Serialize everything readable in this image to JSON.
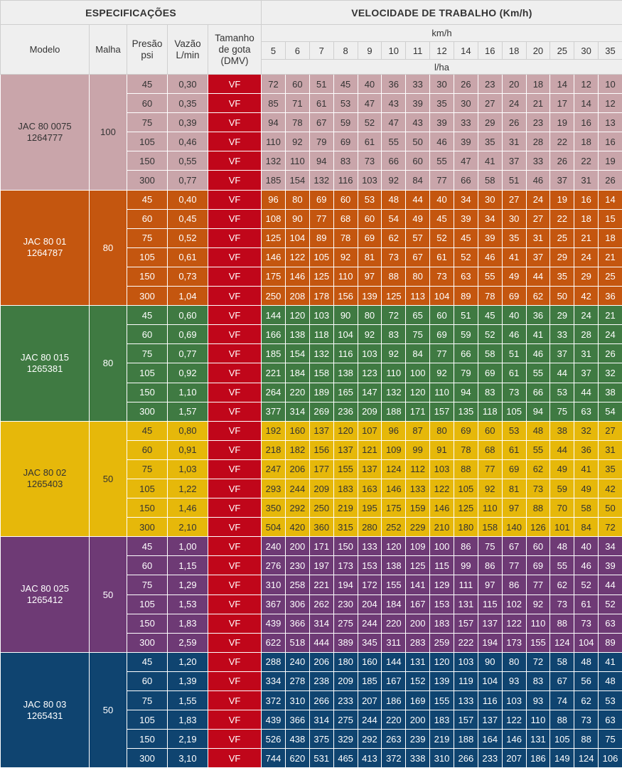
{
  "header": {
    "specs_title": "ESPECIFICAÇÕES",
    "speed_title": "VELOCIDADE DE TRABALHO (Km/h)",
    "col_modelo": "Modelo",
    "col_malha": "Malha",
    "col_presao": "Presão psi",
    "col_vazao": "Vazão L/min",
    "col_gota": "Tamanho de gota (DMV)",
    "speed_unit": "km/h",
    "rate_unit": "l/ha",
    "speeds": [
      "5",
      "6",
      "7",
      "8",
      "9",
      "10",
      "11",
      "12",
      "14",
      "16",
      "18",
      "20",
      "25",
      "30",
      "35"
    ]
  },
  "colors": {
    "vf": "#c0061a"
  },
  "groups": [
    {
      "model": "JAC 80 0075",
      "code": "1264777",
      "malha": "100",
      "bg": "#c9a5aa",
      "fg": "#333333",
      "rows": [
        {
          "psi": "45",
          "flow": "0,30",
          "drop": "VF",
          "values": [
            "72",
            "60",
            "51",
            "45",
            "40",
            "36",
            "33",
            "30",
            "26",
            "23",
            "20",
            "18",
            "14",
            "12",
            "10"
          ]
        },
        {
          "psi": "60",
          "flow": "0,35",
          "drop": "VF",
          "values": [
            "85",
            "71",
            "61",
            "53",
            "47",
            "43",
            "39",
            "35",
            "30",
            "27",
            "24",
            "21",
            "17",
            "14",
            "12"
          ]
        },
        {
          "psi": "75",
          "flow": "0,39",
          "drop": "VF",
          "values": [
            "94",
            "78",
            "67",
            "59",
            "52",
            "47",
            "43",
            "39",
            "33",
            "29",
            "26",
            "23",
            "19",
            "16",
            "13"
          ]
        },
        {
          "psi": "105",
          "flow": "0,46",
          "drop": "VF",
          "values": [
            "110",
            "92",
            "79",
            "69",
            "61",
            "55",
            "50",
            "46",
            "39",
            "35",
            "31",
            "28",
            "22",
            "18",
            "16"
          ]
        },
        {
          "psi": "150",
          "flow": "0,55",
          "drop": "VF",
          "values": [
            "132",
            "110",
            "94",
            "83",
            "73",
            "66",
            "60",
            "55",
            "47",
            "41",
            "37",
            "33",
            "26",
            "22",
            "19"
          ]
        },
        {
          "psi": "300",
          "flow": "0,77",
          "drop": "VF",
          "values": [
            "185",
            "154",
            "132",
            "116",
            "103",
            "92",
            "84",
            "77",
            "66",
            "58",
            "51",
            "46",
            "37",
            "31",
            "26"
          ]
        }
      ]
    },
    {
      "model": "JAC 80 01",
      "code": "1264787",
      "malha": "80",
      "bg": "#c4560f",
      "fg": "#ffffff",
      "rows": [
        {
          "psi": "45",
          "flow": "0,40",
          "drop": "VF",
          "values": [
            "96",
            "80",
            "69",
            "60",
            "53",
            "48",
            "44",
            "40",
            "34",
            "30",
            "27",
            "24",
            "19",
            "16",
            "14"
          ]
        },
        {
          "psi": "60",
          "flow": "0,45",
          "drop": "VF",
          "values": [
            "108",
            "90",
            "77",
            "68",
            "60",
            "54",
            "49",
            "45",
            "39",
            "34",
            "30",
            "27",
            "22",
            "18",
            "15"
          ]
        },
        {
          "psi": "75",
          "flow": "0,52",
          "drop": "VF",
          "values": [
            "125",
            "104",
            "89",
            "78",
            "69",
            "62",
            "57",
            "52",
            "45",
            "39",
            "35",
            "31",
            "25",
            "21",
            "18"
          ]
        },
        {
          "psi": "105",
          "flow": "0,61",
          "drop": "VF",
          "values": [
            "146",
            "122",
            "105",
            "92",
            "81",
            "73",
            "67",
            "61",
            "52",
            "46",
            "41",
            "37",
            "29",
            "24",
            "21"
          ]
        },
        {
          "psi": "150",
          "flow": "0,73",
          "drop": "VF",
          "values": [
            "175",
            "146",
            "125",
            "110",
            "97",
            "88",
            "80",
            "73",
            "63",
            "55",
            "49",
            "44",
            "35",
            "29",
            "25"
          ]
        },
        {
          "psi": "300",
          "flow": "1,04",
          "drop": "VF",
          "values": [
            "250",
            "208",
            "178",
            "156",
            "139",
            "125",
            "113",
            "104",
            "89",
            "78",
            "69",
            "62",
            "50",
            "42",
            "36"
          ]
        }
      ]
    },
    {
      "model": "JAC 80 015",
      "code": "1265381",
      "malha": "80",
      "bg": "#3f7a42",
      "fg": "#ffffff",
      "rows": [
        {
          "psi": "45",
          "flow": "0,60",
          "drop": "VF",
          "values": [
            "144",
            "120",
            "103",
            "90",
            "80",
            "72",
            "65",
            "60",
            "51",
            "45",
            "40",
            "36",
            "29",
            "24",
            "21"
          ]
        },
        {
          "psi": "60",
          "flow": "0,69",
          "drop": "VF",
          "values": [
            "166",
            "138",
            "118",
            "104",
            "92",
            "83",
            "75",
            "69",
            "59",
            "52",
            "46",
            "41",
            "33",
            "28",
            "24"
          ]
        },
        {
          "psi": "75",
          "flow": "0,77",
          "drop": "VF",
          "values": [
            "185",
            "154",
            "132",
            "116",
            "103",
            "92",
            "84",
            "77",
            "66",
            "58",
            "51",
            "46",
            "37",
            "31",
            "26"
          ]
        },
        {
          "psi": "105",
          "flow": "0,92",
          "drop": "VF",
          "values": [
            "221",
            "184",
            "158",
            "138",
            "123",
            "110",
            "100",
            "92",
            "79",
            "69",
            "61",
            "55",
            "44",
            "37",
            "32"
          ]
        },
        {
          "psi": "150",
          "flow": "1,10",
          "drop": "VF",
          "values": [
            "264",
            "220",
            "189",
            "165",
            "147",
            "132",
            "120",
            "110",
            "94",
            "83",
            "73",
            "66",
            "53",
            "44",
            "38"
          ]
        },
        {
          "psi": "300",
          "flow": "1,57",
          "drop": "VF",
          "values": [
            "377",
            "314",
            "269",
            "236",
            "209",
            "188",
            "171",
            "157",
            "135",
            "118",
            "105",
            "94",
            "75",
            "63",
            "54"
          ]
        }
      ]
    },
    {
      "model": "JAC 80 02",
      "code": "1265403",
      "malha": "50",
      "bg": "#e6b80a",
      "fg": "#333333",
      "rows": [
        {
          "psi": "45",
          "flow": "0,80",
          "drop": "VF",
          "values": [
            "192",
            "160",
            "137",
            "120",
            "107",
            "96",
            "87",
            "80",
            "69",
            "60",
            "53",
            "48",
            "38",
            "32",
            "27"
          ]
        },
        {
          "psi": "60",
          "flow": "0,91",
          "drop": "VF",
          "values": [
            "218",
            "182",
            "156",
            "137",
            "121",
            "109",
            "99",
            "91",
            "78",
            "68",
            "61",
            "55",
            "44",
            "36",
            "31"
          ]
        },
        {
          "psi": "75",
          "flow": "1,03",
          "drop": "VF",
          "values": [
            "247",
            "206",
            "177",
            "155",
            "137",
            "124",
            "112",
            "103",
            "88",
            "77",
            "69",
            "62",
            "49",
            "41",
            "35"
          ]
        },
        {
          "psi": "105",
          "flow": "1,22",
          "drop": "VF",
          "values": [
            "293",
            "244",
            "209",
            "183",
            "163",
            "146",
            "133",
            "122",
            "105",
            "92",
            "81",
            "73",
            "59",
            "49",
            "42"
          ]
        },
        {
          "psi": "150",
          "flow": "1,46",
          "drop": "VF",
          "values": [
            "350",
            "292",
            "250",
            "219",
            "195",
            "175",
            "159",
            "146",
            "125",
            "110",
            "97",
            "88",
            "70",
            "58",
            "50"
          ]
        },
        {
          "psi": "300",
          "flow": "2,10",
          "drop": "VF",
          "values": [
            "504",
            "420",
            "360",
            "315",
            "280",
            "252",
            "229",
            "210",
            "180",
            "158",
            "140",
            "126",
            "101",
            "84",
            "72"
          ]
        }
      ]
    },
    {
      "model": "JAC 80 025",
      "code": "1265412",
      "malha": "50",
      "bg": "#6e3a75",
      "fg": "#ffffff",
      "rows": [
        {
          "psi": "45",
          "flow": "1,00",
          "drop": "VF",
          "values": [
            "240",
            "200",
            "171",
            "150",
            "133",
            "120",
            "109",
            "100",
            "86",
            "75",
            "67",
            "60",
            "48",
            "40",
            "34"
          ]
        },
        {
          "psi": "60",
          "flow": "1,15",
          "drop": "VF",
          "values": [
            "276",
            "230",
            "197",
            "173",
            "153",
            "138",
            "125",
            "115",
            "99",
            "86",
            "77",
            "69",
            "55",
            "46",
            "39"
          ]
        },
        {
          "psi": "75",
          "flow": "1,29",
          "drop": "VF",
          "values": [
            "310",
            "258",
            "221",
            "194",
            "172",
            "155",
            "141",
            "129",
            "111",
            "97",
            "86",
            "77",
            "62",
            "52",
            "44"
          ]
        },
        {
          "psi": "105",
          "flow": "1,53",
          "drop": "VF",
          "values": [
            "367",
            "306",
            "262",
            "230",
            "204",
            "184",
            "167",
            "153",
            "131",
            "115",
            "102",
            "92",
            "73",
            "61",
            "52"
          ]
        },
        {
          "psi": "150",
          "flow": "1,83",
          "drop": "VF",
          "values": [
            "439",
            "366",
            "314",
            "275",
            "244",
            "220",
            "200",
            "183",
            "157",
            "137",
            "122",
            "110",
            "88",
            "73",
            "63"
          ]
        },
        {
          "psi": "300",
          "flow": "2,59",
          "drop": "VF",
          "values": [
            "622",
            "518",
            "444",
            "389",
            "345",
            "311",
            "283",
            "259",
            "222",
            "194",
            "173",
            "155",
            "124",
            "104",
            "89"
          ]
        }
      ]
    },
    {
      "model": "JAC 80 03",
      "code": "1265431",
      "malha": "50",
      "bg": "#0f4470",
      "fg": "#ffffff",
      "rows": [
        {
          "psi": "45",
          "flow": "1,20",
          "drop": "VF",
          "values": [
            "288",
            "240",
            "206",
            "180",
            "160",
            "144",
            "131",
            "120",
            "103",
            "90",
            "80",
            "72",
            "58",
            "48",
            "41"
          ]
        },
        {
          "psi": "60",
          "flow": "1,39",
          "drop": "VF",
          "values": [
            "334",
            "278",
            "238",
            "209",
            "185",
            "167",
            "152",
            "139",
            "119",
            "104",
            "93",
            "83",
            "67",
            "56",
            "48"
          ]
        },
        {
          "psi": "75",
          "flow": "1,55",
          "drop": "VF",
          "values": [
            "372",
            "310",
            "266",
            "233",
            "207",
            "186",
            "169",
            "155",
            "133",
            "116",
            "103",
            "93",
            "74",
            "62",
            "53"
          ]
        },
        {
          "psi": "105",
          "flow": "1,83",
          "drop": "VF",
          "values": [
            "439",
            "366",
            "314",
            "275",
            "244",
            "220",
            "200",
            "183",
            "157",
            "137",
            "122",
            "110",
            "88",
            "73",
            "63"
          ]
        },
        {
          "psi": "150",
          "flow": "2,19",
          "drop": "VF",
          "values": [
            "526",
            "438",
            "375",
            "329",
            "292",
            "263",
            "239",
            "219",
            "188",
            "164",
            "146",
            "131",
            "105",
            "88",
            "75"
          ]
        },
        {
          "psi": "300",
          "flow": "3,10",
          "drop": "VF",
          "values": [
            "744",
            "620",
            "531",
            "465",
            "413",
            "372",
            "338",
            "310",
            "266",
            "233",
            "207",
            "186",
            "149",
            "124",
            "106"
          ]
        }
      ]
    }
  ]
}
